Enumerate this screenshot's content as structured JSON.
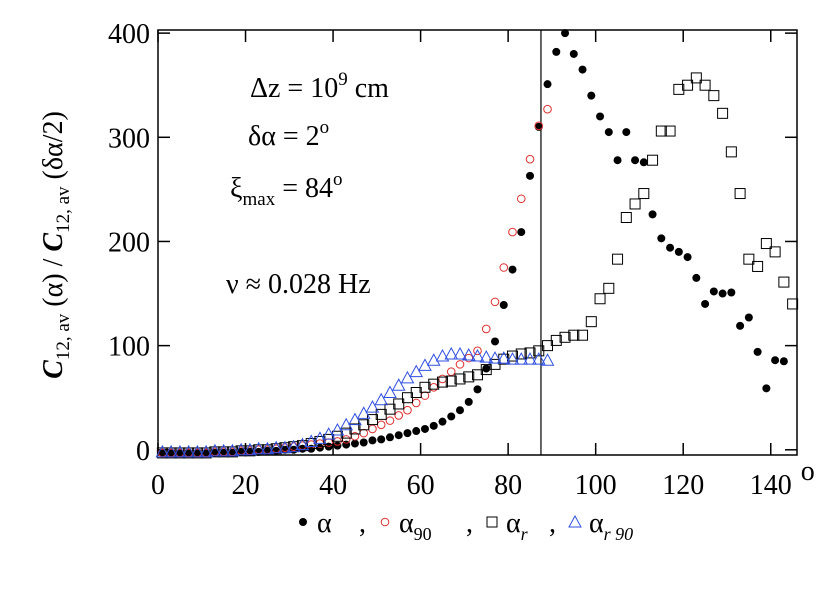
{
  "chart_data": {
    "type": "scatter",
    "ylabel": [
      "C",
      "12, av",
      " (α) / ",
      "C",
      "12, av",
      " (δα/2)"
    ],
    "annotations": [
      [
        "Δz = 10",
        "9",
        " cm"
      ],
      [
        "δα = 2",
        "o"
      ],
      [
        "ξ",
        "max",
        " = 84",
        "o"
      ],
      [
        "ν ≈ 0.028 Hz"
      ]
    ],
    "xlim": [
      0,
      146
    ],
    "ylim": [
      -5,
      403
    ],
    "xticks": [
      0,
      20,
      40,
      60,
      80,
      100,
      120,
      140
    ],
    "x_unit_mark": "o",
    "yticks": [
      0,
      100,
      200,
      300,
      400
    ],
    "vline": 87.5,
    "legend_separator": ",",
    "series": [
      {
        "name": "α",
        "subscript": null,
        "color": "#000000",
        "marker": "filled-circle",
        "x": [
          1,
          3,
          5,
          7,
          9,
          11,
          13,
          15,
          17,
          19,
          21,
          23,
          25,
          27,
          29,
          31,
          33,
          35,
          37,
          39,
          41,
          43,
          45,
          47,
          49,
          51,
          53,
          55,
          57,
          59,
          61,
          63,
          65,
          67,
          69,
          71,
          73,
          75,
          77,
          79,
          81,
          83,
          85,
          87,
          89,
          91,
          93,
          95,
          97,
          99,
          101,
          103,
          105,
          107,
          109,
          111,
          113,
          115,
          117,
          119,
          121,
          123,
          125,
          127,
          129,
          131,
          133,
          135,
          137,
          139,
          141,
          143
        ],
        "values": [
          -3,
          -3,
          -3,
          -3,
          -3,
          -3,
          -3,
          -3,
          -3,
          -2,
          -2,
          -2,
          -1,
          -1,
          0,
          0,
          1,
          1,
          2,
          3,
          4,
          5,
          6,
          7,
          9,
          10,
          12,
          14,
          16,
          18,
          20,
          23,
          27,
          32,
          38,
          46,
          58,
          78,
          104,
          139,
          173,
          209,
          263,
          310,
          351,
          382,
          400,
          380,
          365,
          340,
          320,
          305,
          278,
          305,
          278,
          276,
          226,
          203,
          194,
          190,
          185,
          165,
          140,
          152,
          150,
          151,
          119,
          127,
          94,
          59,
          86,
          85
        ]
      },
      {
        "name": "α",
        "subscript": "90",
        "color": "#e03030",
        "marker": "circle",
        "x": [
          1,
          3,
          5,
          7,
          9,
          11,
          13,
          15,
          17,
          19,
          21,
          23,
          25,
          27,
          29,
          31,
          33,
          35,
          37,
          39,
          41,
          43,
          45,
          47,
          49,
          51,
          53,
          55,
          57,
          59,
          61,
          63,
          65,
          67,
          69,
          71,
          73,
          75,
          77,
          79,
          81,
          83,
          85,
          87,
          89
        ],
        "values": [
          -3,
          -3,
          -3,
          -3,
          -3,
          -3,
          -2,
          -2,
          -2,
          -1,
          -1,
          0,
          0,
          1,
          2,
          3,
          4,
          5,
          6,
          7,
          8,
          10,
          13,
          16,
          20,
          24,
          28,
          33,
          38,
          45,
          52,
          60,
          68,
          75,
          82,
          88,
          95,
          116,
          142,
          175,
          209,
          241,
          279,
          311,
          327
        ]
      },
      {
        "name": "α",
        "subscript": "r",
        "color": "#000000",
        "marker": "square",
        "x": [
          1,
          3,
          5,
          7,
          9,
          11,
          13,
          15,
          17,
          19,
          21,
          23,
          25,
          27,
          29,
          31,
          33,
          35,
          37,
          39,
          41,
          43,
          45,
          47,
          49,
          51,
          53,
          55,
          57,
          59,
          61,
          63,
          65,
          67,
          69,
          71,
          73,
          75,
          77,
          79,
          81,
          83,
          85,
          87,
          89,
          91,
          93,
          95,
          97,
          99,
          101,
          103,
          105,
          107,
          109,
          111,
          113,
          115,
          117,
          119,
          121,
          123,
          125,
          127,
          129,
          131,
          133,
          135,
          137,
          139,
          141,
          143,
          145
        ],
        "values": [
          -3,
          -3,
          -3,
          -3,
          -3,
          -3,
          -2,
          -2,
          -2,
          -1,
          -1,
          0,
          0,
          1,
          2,
          3,
          4,
          6,
          8,
          10,
          13,
          16,
          20,
          24,
          29,
          34,
          39,
          44,
          50,
          55,
          60,
          63,
          65,
          66,
          68,
          70,
          72,
          77,
          82,
          87,
          90,
          92,
          93,
          95,
          100,
          105,
          108,
          110,
          110,
          123,
          145,
          155,
          183,
          223,
          236,
          246,
          278,
          306,
          306,
          346,
          350,
          357,
          350,
          340,
          323,
          286,
          246,
          183,
          176,
          198,
          190,
          161,
          140
        ]
      },
      {
        "name": "α",
        "subscript": "r 90",
        "color": "#3050e0",
        "marker": "triangle",
        "x": [
          1,
          3,
          5,
          7,
          9,
          11,
          13,
          15,
          17,
          19,
          21,
          23,
          25,
          27,
          29,
          31,
          33,
          35,
          37,
          39,
          41,
          43,
          45,
          47,
          49,
          51,
          53,
          55,
          57,
          59,
          61,
          63,
          65,
          67,
          69,
          71,
          73,
          75,
          77,
          79,
          81,
          83,
          85,
          87,
          89
        ],
        "values": [
          -2,
          -2,
          -2,
          -2,
          -2,
          -2,
          -1,
          -1,
          -1,
          0,
          0,
          1,
          1,
          2,
          2,
          3,
          5,
          8,
          11,
          15,
          19,
          24,
          29,
          35,
          41,
          48,
          55,
          62,
          69,
          75,
          81,
          86,
          90,
          92,
          92,
          91,
          90,
          89,
          88,
          88,
          87,
          87,
          87,
          87,
          86
        ]
      }
    ]
  }
}
